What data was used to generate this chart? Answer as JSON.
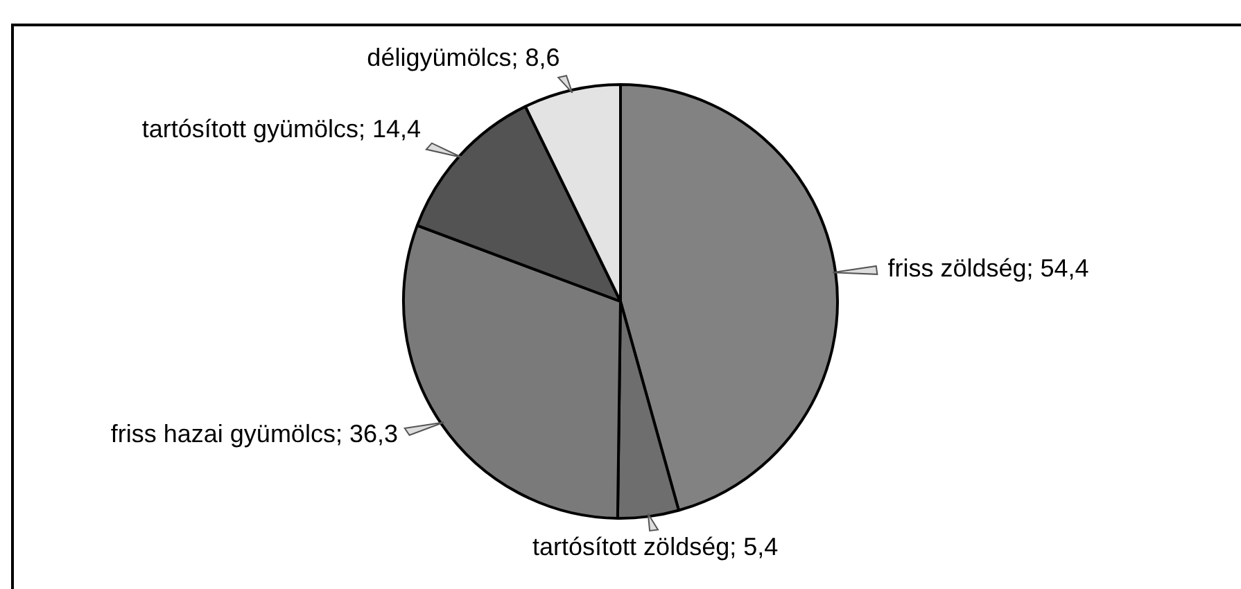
{
  "chart_data": {
    "type": "pie",
    "categories": [
      "friss zöldség",
      "tartósított zöldség",
      "friss hazai gyümölcs",
      "tartósított gyümölcs",
      "déligyümölcs"
    ],
    "values": [
      54.4,
      5.4,
      36.3,
      14.4,
      8.6
    ],
    "value_labels": [
      "54,4",
      "5,4",
      "36,3",
      "14,4",
      "8,6"
    ],
    "colors": [
      "#828282",
      "#6e6e6e",
      "#7a7a7a",
      "#535353",
      "#e3e3e3"
    ],
    "legend": false
  }
}
